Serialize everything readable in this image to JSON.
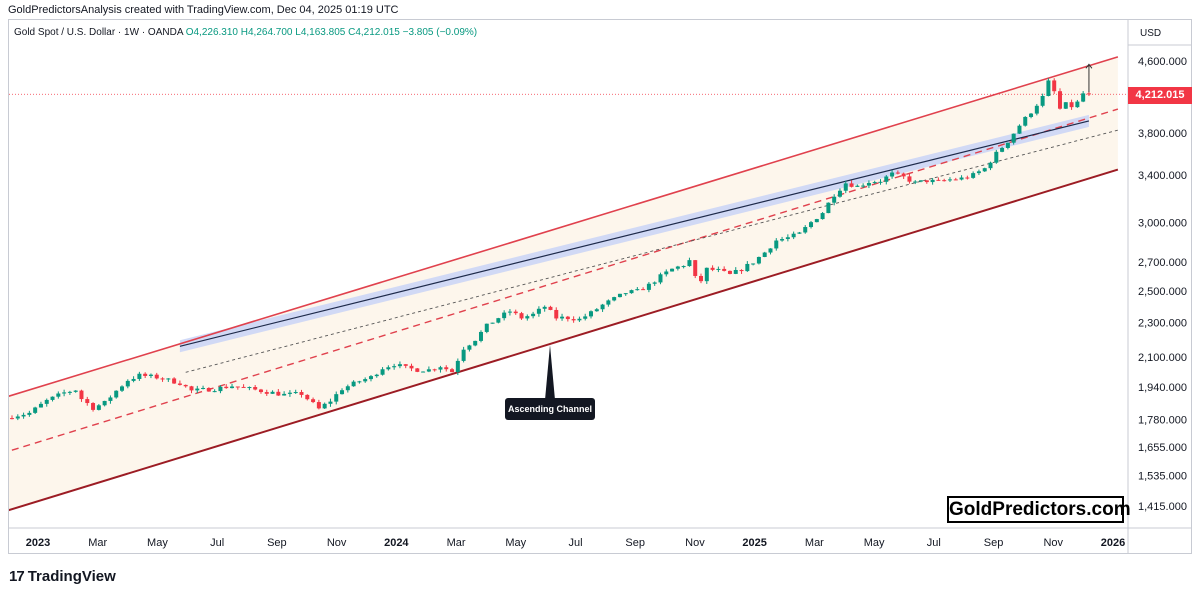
{
  "header": {
    "credit": "GoldPredictorsAnalysis created with TradingView.com, Dec 04, 2025 01:19 UTC"
  },
  "ticker": {
    "symbol": "Gold Spot / U.S. Dollar · 1W · OANDA",
    "open": "O4,226.310",
    "high": "H4,264.700",
    "low": "L4,163.805",
    "close": "C4,212.015",
    "change": "−3.805 (−0.09%)"
  },
  "currency": "USD",
  "last_price_label": "4,212.015",
  "annotation": "Ascending Channel",
  "watermark": "GoldPredictors.com",
  "footer_logo": "TradingView",
  "colors": {
    "up": "#089981",
    "down": "#f23645",
    "channel_upper": "#e0414d",
    "channel_lower": "#9c1c24",
    "channel_fill": "#fdf6ec",
    "band_fill": "#c9d4f7",
    "midline": "#e0414d"
  },
  "chart_data": {
    "type": "candlestick",
    "interval": "1W",
    "y_scale": "log",
    "ylim": [
      1350,
      4800
    ],
    "y_ticks": [
      {
        "value": 1415,
        "label": "1,415.000"
      },
      {
        "value": 1535,
        "label": "1,535.000"
      },
      {
        "value": 1655,
        "label": "1,655.000"
      },
      {
        "value": 1780,
        "label": "1,780.000"
      },
      {
        "value": 1940,
        "label": "1,940.000"
      },
      {
        "value": 2100,
        "label": "2,100.000"
      },
      {
        "value": 2300,
        "label": "2,300.000"
      },
      {
        "value": 2500,
        "label": "2,500.000"
      },
      {
        "value": 2700,
        "label": "2,700.000"
      },
      {
        "value": 3000,
        "label": "3,000.000"
      },
      {
        "value": 3400,
        "label": "3,400.000"
      },
      {
        "value": 3800,
        "label": "3,800.000"
      },
      {
        "value": 4600,
        "label": "4,600.000"
      }
    ],
    "x_ticks": [
      {
        "label": "2023",
        "bold": true
      },
      {
        "label": "Mar",
        "bold": false
      },
      {
        "label": "May",
        "bold": false
      },
      {
        "label": "Jul",
        "bold": false
      },
      {
        "label": "Sep",
        "bold": false
      },
      {
        "label": "Nov",
        "bold": false
      },
      {
        "label": "2024",
        "bold": true
      },
      {
        "label": "Mar",
        "bold": false
      },
      {
        "label": "May",
        "bold": false
      },
      {
        "label": "Jul",
        "bold": false
      },
      {
        "label": "Sep",
        "bold": false
      },
      {
        "label": "Nov",
        "bold": false
      },
      {
        "label": "2025",
        "bold": true
      },
      {
        "label": "Mar",
        "bold": false
      },
      {
        "label": "May",
        "bold": false
      },
      {
        "label": "Jul",
        "bold": false
      },
      {
        "label": "Sep",
        "bold": false
      },
      {
        "label": "Nov",
        "bold": false
      },
      {
        "label": "2026",
        "bold": true
      }
    ],
    "close_path": [
      [
        0,
        1795
      ],
      [
        3,
        1810
      ],
      [
        6,
        1870
      ],
      [
        9,
        1910
      ],
      [
        11,
        1925
      ],
      [
        12,
        1880
      ],
      [
        14,
        1835
      ],
      [
        16,
        1860
      ],
      [
        18,
        1920
      ],
      [
        20,
        1975
      ],
      [
        22,
        2000
      ],
      [
        25,
        1990
      ],
      [
        27,
        1975
      ],
      [
        29,
        1960
      ],
      [
        31,
        1920
      ],
      [
        33,
        1925
      ],
      [
        35,
        1930
      ],
      [
        38,
        1945
      ],
      [
        41,
        1930
      ],
      [
        44,
        1915
      ],
      [
        47,
        1900
      ],
      [
        50,
        1905
      ],
      [
        53,
        1830
      ],
      [
        55,
        1870
      ],
      [
        57,
        1930
      ],
      [
        60,
        1970
      ],
      [
        62,
        1990
      ],
      [
        64,
        2040
      ],
      [
        66,
        2060
      ],
      [
        68,
        2040
      ],
      [
        70,
        2030
      ],
      [
        72,
        2030
      ],
      [
        74,
        2050
      ],
      [
        76,
        2020
      ],
      [
        78,
        2150
      ],
      [
        80,
        2200
      ],
      [
        82,
        2280
      ],
      [
        84,
        2330
      ],
      [
        86,
        2370
      ],
      [
        88,
        2330
      ],
      [
        90,
        2350
      ],
      [
        92,
        2400
      ],
      [
        94,
        2330
      ],
      [
        96,
        2330
      ],
      [
        98,
        2320
      ],
      [
        100,
        2360
      ],
      [
        102,
        2410
      ],
      [
        104,
        2450
      ],
      [
        106,
        2490
      ],
      [
        108,
        2500
      ],
      [
        110,
        2540
      ],
      [
        112,
        2600
      ],
      [
        114,
        2650
      ],
      [
        116,
        2680
      ],
      [
        117,
        2710
      ],
      [
        118,
        2590
      ],
      [
        119,
        2570
      ],
      [
        120,
        2650
      ],
      [
        122,
        2640
      ],
      [
        124,
        2610
      ],
      [
        126,
        2650
      ],
      [
        128,
        2700
      ],
      [
        130,
        2770
      ],
      [
        132,
        2860
      ],
      [
        134,
        2880
      ],
      [
        136,
        2910
      ],
      [
        138,
        3000
      ],
      [
        140,
        3080
      ],
      [
        142,
        3230
      ],
      [
        144,
        3330
      ],
      [
        146,
        3300
      ],
      [
        148,
        3340
      ],
      [
        150,
        3350
      ],
      [
        152,
        3410
      ],
      [
        154,
        3380
      ],
      [
        156,
        3330
      ],
      [
        158,
        3350
      ],
      [
        160,
        3340
      ],
      [
        162,
        3360
      ],
      [
        164,
        3370
      ],
      [
        166,
        3400
      ],
      [
        168,
        3460
      ],
      [
        170,
        3600
      ],
      [
        172,
        3720
      ],
      [
        174,
        3880
      ],
      [
        176,
        4020
      ],
      [
        178,
        4180
      ],
      [
        179,
        4350
      ],
      [
        180,
        4240
      ],
      [
        181,
        4050
      ],
      [
        182,
        4100
      ],
      [
        183,
        4080
      ],
      [
        184,
        4120
      ],
      [
        185,
        4220
      ],
      [
        186,
        4212
      ]
    ],
    "channel": {
      "start_week": -2,
      "end_week": 191,
      "upper": [
        1880,
        4650
      ],
      "lower": [
        1390,
        3450
      ],
      "midline": [
        1625,
        4050
      ],
      "inner_dashed": [
        1775,
        3830
      ],
      "band_center": [
        1920,
        4000
      ]
    }
  }
}
